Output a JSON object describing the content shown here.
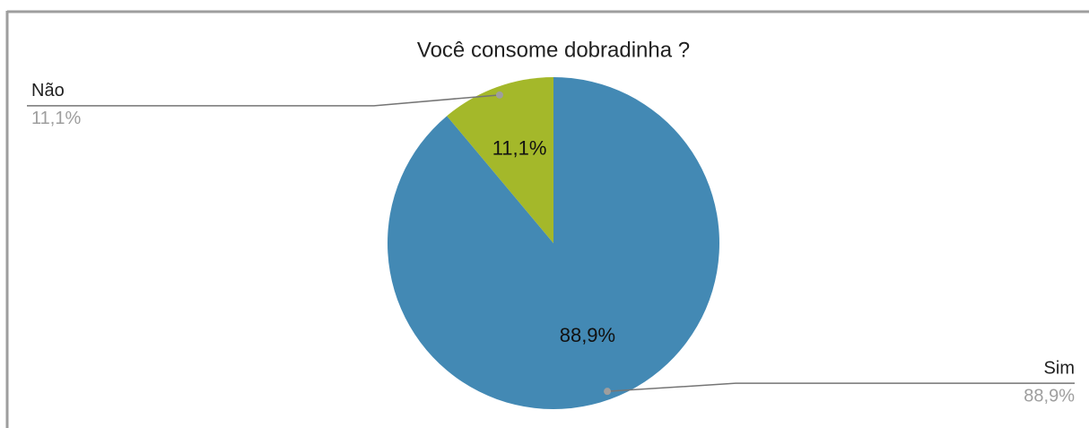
{
  "chart_data": {
    "type": "pie",
    "title": "Você consome dobradinha ?",
    "categories": [
      "Sim",
      "Não"
    ],
    "values": [
      88.9,
      11.1
    ],
    "value_labels": [
      "88,9%",
      "11,1%"
    ],
    "colors": [
      "#4389b4",
      "#a4b82a"
    ]
  }
}
